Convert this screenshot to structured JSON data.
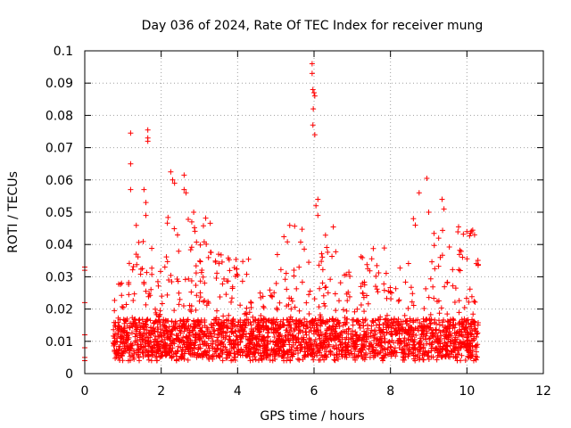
{
  "chart_data": {
    "type": "scatter",
    "title": "Day 036 of 2024, Rate Of TEC Index for receiver mung",
    "xlabel": "GPS time / hours",
    "ylabel": "ROTI / TECUs",
    "xlim": [
      0,
      12
    ],
    "ylim": [
      0,
      0.1
    ],
    "xticks": [
      0,
      2,
      4,
      6,
      8,
      10,
      12
    ],
    "xtick_labels": [
      "0",
      "2",
      "4",
      "6",
      "8",
      "10",
      "12"
    ],
    "yticks": [
      0,
      0.01,
      0.02,
      0.03,
      0.04,
      0.05,
      0.06,
      0.07,
      0.08,
      0.09,
      0.1
    ],
    "ytick_labels": [
      "0",
      "0.01",
      "0.02",
      "0.03",
      "0.04",
      "0.05",
      "0.06",
      "0.07",
      "0.08",
      "0.09",
      "0.1"
    ],
    "grid": true,
    "marker": "+",
    "series": [
      {
        "name": "ROTI",
        "color": "#ff0000",
        "x_range": [
          0,
          10.3
        ],
        "description_points": "dense scatter; typical 0.005–0.02 with spikes",
        "points": [
          [
            0.0,
            0.033
          ],
          [
            0.0,
            0.032
          ],
          [
            0.0,
            0.022
          ],
          [
            0.0,
            0.012
          ],
          [
            0.0,
            0.008
          ],
          [
            0.0,
            0.005
          ],
          [
            0.0,
            0.004
          ],
          [
            1.2,
            0.0745
          ],
          [
            1.2,
            0.065
          ],
          [
            1.2,
            0.057
          ],
          [
            1.55,
            0.057
          ],
          [
            1.6,
            0.053
          ],
          [
            1.6,
            0.049
          ],
          [
            1.65,
            0.0755
          ],
          [
            1.65,
            0.073
          ],
          [
            1.65,
            0.072
          ],
          [
            2.25,
            0.0625
          ],
          [
            2.3,
            0.06
          ],
          [
            2.35,
            0.059
          ],
          [
            2.6,
            0.0615
          ],
          [
            2.6,
            0.057
          ],
          [
            2.65,
            0.056
          ],
          [
            2.85,
            0.05
          ],
          [
            2.8,
            0.047
          ],
          [
            5.95,
            0.096
          ],
          [
            5.95,
            0.093
          ],
          [
            5.97,
            0.088
          ],
          [
            6.0,
            0.087
          ],
          [
            6.02,
            0.086
          ],
          [
            5.98,
            0.082
          ],
          [
            5.97,
            0.077
          ],
          [
            6.02,
            0.074
          ],
          [
            6.1,
            0.054
          ],
          [
            6.05,
            0.052
          ],
          [
            6.1,
            0.049
          ],
          [
            8.75,
            0.056
          ],
          [
            8.95,
            0.0605
          ],
          [
            9.0,
            0.05
          ],
          [
            9.35,
            0.054
          ],
          [
            9.4,
            0.051
          ],
          [
            8.6,
            0.048
          ],
          [
            8.65,
            0.046
          ],
          [
            10.0,
            0.044
          ],
          [
            10.2,
            0.043
          ]
        ]
      }
    ]
  }
}
